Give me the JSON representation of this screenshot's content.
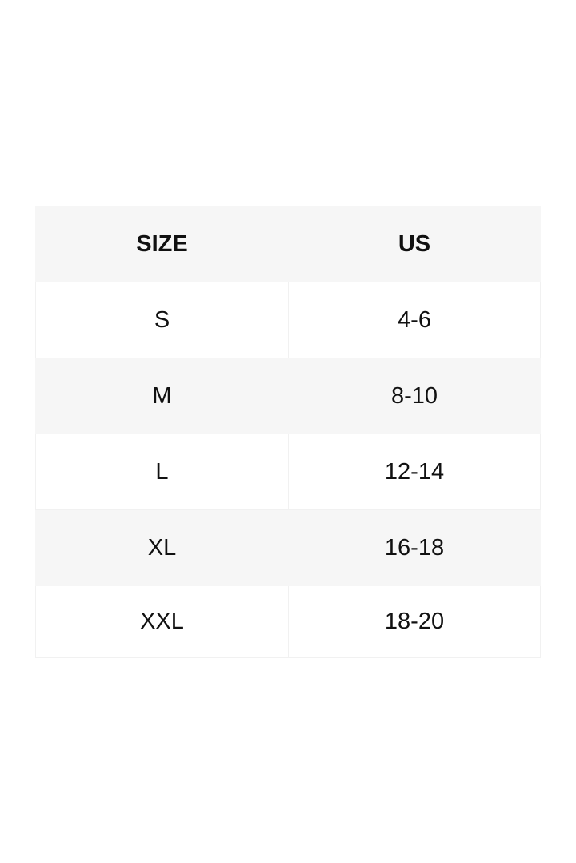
{
  "size_chart": {
    "headers": [
      "SIZE",
      "US"
    ],
    "rows": [
      [
        "S",
        "4-6"
      ],
      [
        "M",
        "8-10"
      ],
      [
        "L",
        "12-14"
      ],
      [
        "XL",
        "16-18"
      ],
      [
        "XXL",
        "18-20"
      ]
    ],
    "colors": {
      "shaded_row": "#f6f6f6",
      "background": "#ffffff",
      "text": "#111111"
    }
  }
}
